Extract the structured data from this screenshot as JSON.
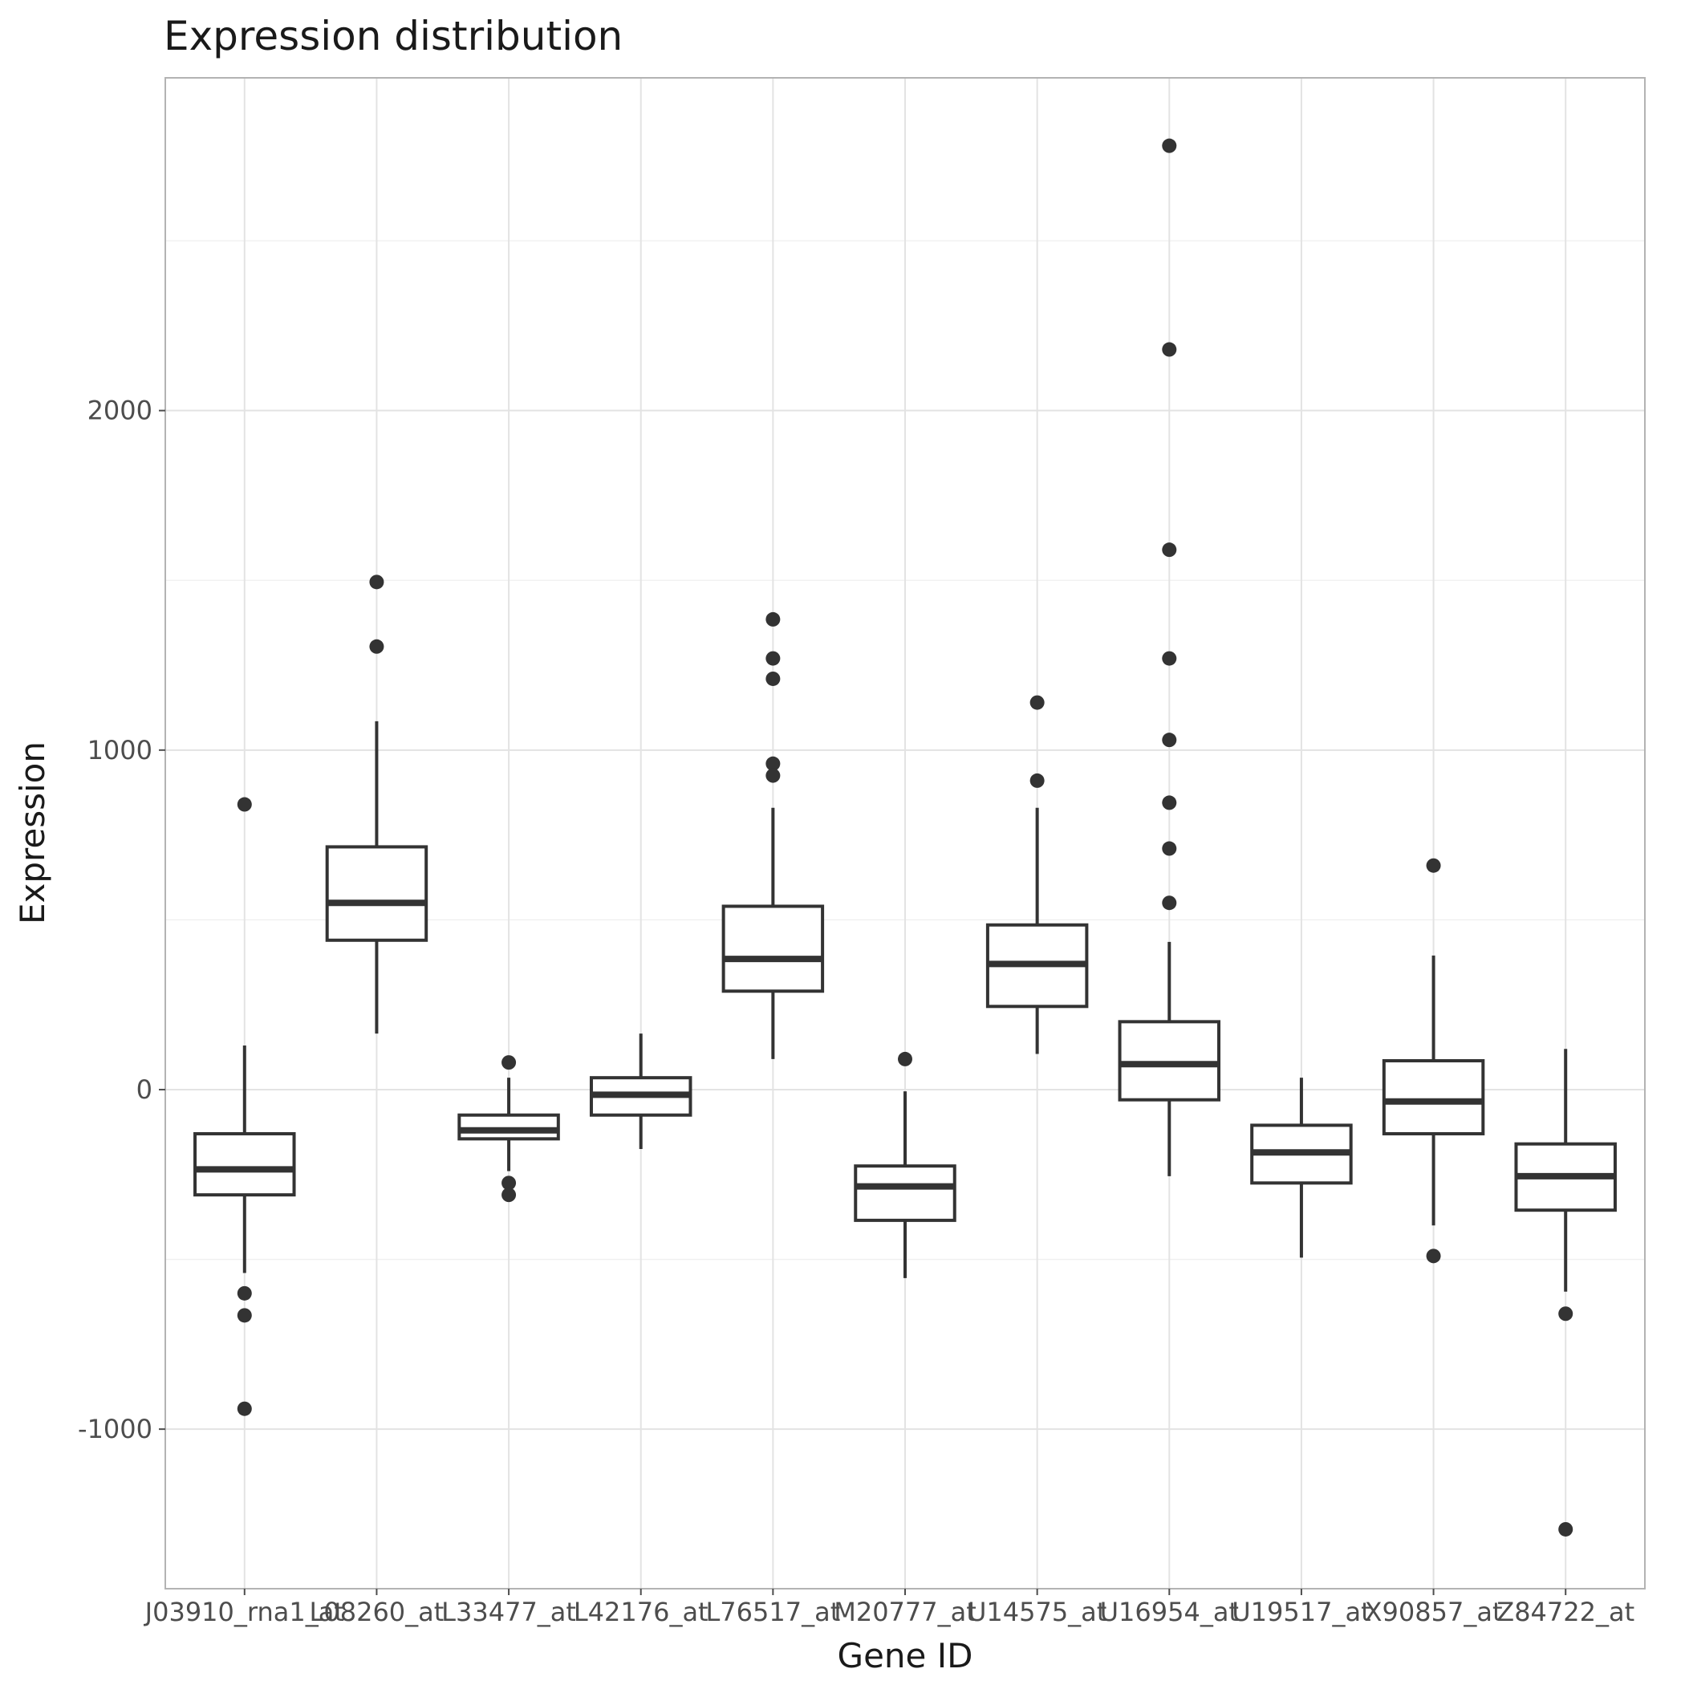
{
  "chart_data": {
    "type": "box",
    "title": "Expression distribution",
    "xlabel": "Gene ID",
    "ylabel": "Expression",
    "ylim": [
      -1470,
      2980
    ],
    "yticks": [
      -1000,
      0,
      1000,
      2000
    ],
    "grid": true,
    "categories": [
      "J03910_rna1_at",
      "L08260_at",
      "L33477_at",
      "L42176_at",
      "L76517_at",
      "M20777_at",
      "U14575_at",
      "U16954_at",
      "U19517_at",
      "X90857_at",
      "Z84722_at"
    ],
    "boxes": [
      {
        "q1": -310,
        "median": -235,
        "q3": -130,
        "whisker_low": -540,
        "whisker_high": 130,
        "outliers": [
          840,
          -600,
          -665,
          -940
        ]
      },
      {
        "q1": 440,
        "median": 550,
        "q3": 715,
        "whisker_low": 165,
        "whisker_high": 1085,
        "outliers": [
          1495,
          1305
        ]
      },
      {
        "q1": -145,
        "median": -120,
        "q3": -75,
        "whisker_low": -240,
        "whisker_high": 35,
        "outliers": [
          80,
          -275,
          -310
        ]
      },
      {
        "q1": -75,
        "median": -15,
        "q3": 35,
        "whisker_low": -175,
        "whisker_high": 165,
        "outliers": []
      },
      {
        "q1": 290,
        "median": 385,
        "q3": 540,
        "whisker_low": 90,
        "whisker_high": 830,
        "outliers": [
          1385,
          1270,
          1210,
          960,
          925
        ]
      },
      {
        "q1": -385,
        "median": -285,
        "q3": -225,
        "whisker_low": -555,
        "whisker_high": -5,
        "outliers": [
          90
        ]
      },
      {
        "q1": 245,
        "median": 370,
        "q3": 485,
        "whisker_low": 105,
        "whisker_high": 830,
        "outliers": [
          1140,
          910
        ]
      },
      {
        "q1": -30,
        "median": 75,
        "q3": 200,
        "whisker_low": -255,
        "whisker_high": 435,
        "outliers": [
          2780,
          2180,
          1590,
          1270,
          1030,
          845,
          710,
          550
        ]
      },
      {
        "q1": -275,
        "median": -185,
        "q3": -105,
        "whisker_low": -495,
        "whisker_high": 35,
        "outliers": []
      },
      {
        "q1": -130,
        "median": -35,
        "q3": 85,
        "whisker_low": -400,
        "whisker_high": 395,
        "outliers": [
          660,
          -490
        ]
      },
      {
        "q1": -355,
        "median": -255,
        "q3": -160,
        "whisker_low": -595,
        "whisker_high": 120,
        "outliers": [
          -660,
          -1295
        ]
      }
    ]
  }
}
